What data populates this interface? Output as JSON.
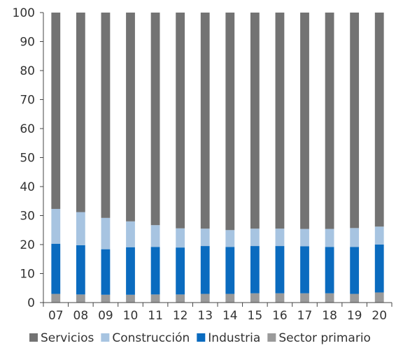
{
  "chart_data": {
    "type": "bar",
    "stacked": true,
    "categories": [
      "07",
      "08",
      "09",
      "10",
      "11",
      "12",
      "13",
      "14",
      "15",
      "16",
      "17",
      "18",
      "19",
      "20"
    ],
    "ylim": [
      0,
      100
    ],
    "yticks": [
      "0",
      "10",
      "20",
      "30",
      "40",
      "50",
      "60",
      "70",
      "80",
      "90",
      "100"
    ],
    "series": [
      {
        "name": "Sector primario",
        "color": "#9a9a9a",
        "values": [
          3.0,
          2.8,
          2.7,
          2.7,
          2.8,
          2.8,
          3.0,
          3.0,
          3.2,
          3.2,
          3.2,
          3.2,
          3.0,
          3.5
        ]
      },
      {
        "name": "Industria",
        "color": "#0a6bbf",
        "values": [
          17.3,
          17.0,
          15.7,
          16.4,
          16.4,
          16.2,
          16.5,
          16.2,
          16.3,
          16.3,
          16.2,
          16.0,
          16.2,
          16.5
        ]
      },
      {
        "name": "Construcción",
        "color": "#a7c4e1",
        "values": [
          12.0,
          11.4,
          10.8,
          8.9,
          7.5,
          6.6,
          6.0,
          5.8,
          6.0,
          6.0,
          6.0,
          6.2,
          6.5,
          6.2
        ]
      },
      {
        "name": "Servicios",
        "color": "#737373",
        "values": [
          67.7,
          68.8,
          70.8,
          72.0,
          73.3,
          74.4,
          74.5,
          75.0,
          74.5,
          74.5,
          74.6,
          74.6,
          74.3,
          73.8
        ]
      }
    ],
    "legend_order": [
      "Servicios",
      "Construcción",
      "Industria",
      "Sector primario"
    ],
    "legend_position": "bottom",
    "grid": false
  }
}
